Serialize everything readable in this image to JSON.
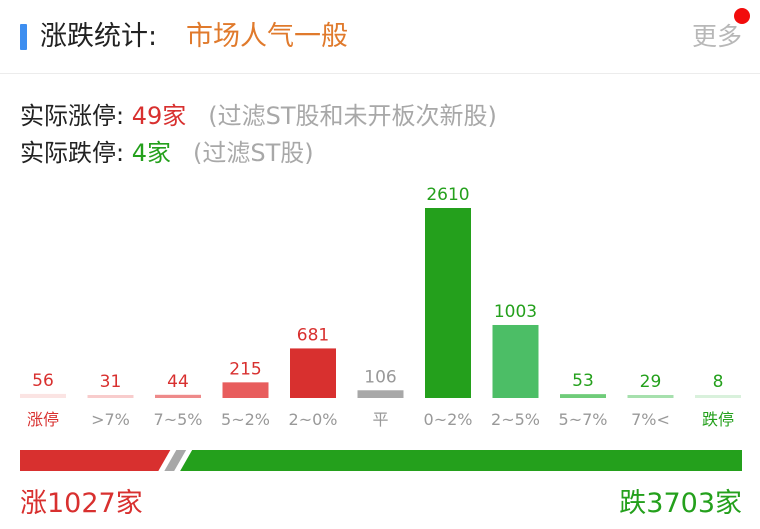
{
  "header": {
    "title": "涨跌统计:",
    "sentiment": "市场人气一般",
    "more_label": "更多",
    "accent_color": "#3d8ef0",
    "badge_color": "#f20c0c"
  },
  "limits": {
    "up_label": "实际涨停: ",
    "up_value": "49家",
    "up_note": "(过滤ST股和未开板次新股)",
    "down_label": "实际跌停: ",
    "down_value": "4家",
    "down_note": "(过滤ST股)"
  },
  "chart_data": {
    "type": "bar",
    "categories": [
      "涨停",
      ">7%",
      "7~5%",
      "5~2%",
      "2~0%",
      "平",
      "0~2%",
      "2~5%",
      "5~7%",
      "7%<",
      "跌停"
    ],
    "values": [
      56,
      31,
      44,
      215,
      681,
      106,
      2610,
      1003,
      53,
      29,
      8
    ],
    "colors": [
      "#fbe4e3",
      "#f8cccc",
      "#ee8a8a",
      "#e85d5d",
      "#d8302f",
      "#a8a8a8",
      "#24a01c",
      "#4cbe66",
      "#6fcc79",
      "#a6e0ad",
      "#d9f1dc"
    ],
    "label_colors": [
      "#d8302f",
      "#d8302f",
      "#d8302f",
      "#d8302f",
      "#d8302f",
      "#999999",
      "#24a01c",
      "#24a01c",
      "#24a01c",
      "#24a01c",
      "#24a01c"
    ],
    "category_colors": [
      "#d8302f",
      "#999999",
      "#999999",
      "#999999",
      "#999999",
      "#999999",
      "#999999",
      "#999999",
      "#999999",
      "#999999",
      "#24a01c"
    ],
    "ylim": [
      0,
      2610
    ],
    "grid": false,
    "legend": "none"
  },
  "summary": {
    "up_text": "涨1027家",
    "down_text": "跌3703家",
    "up_count": 1027,
    "flat_count": 106,
    "down_count": 3703,
    "up_color": "#d8302f",
    "flat_color": "#a8a8a8",
    "down_color": "#24a01c"
  }
}
